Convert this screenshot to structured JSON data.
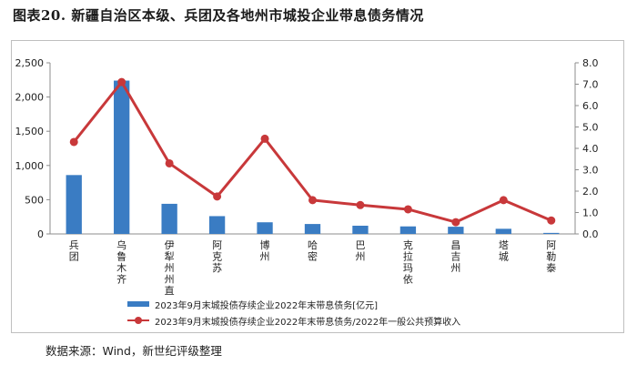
{
  "title": "图表20. 新疆自治区本级、兵团及各地州市城投企业带息债务情况",
  "source": "数据来源：Wind，新世纪评级整理",
  "chart_data": {
    "type": "bar",
    "categories": [
      "兵团",
      "乌鲁木齐",
      "伊犁州州直",
      "阿克苏",
      "博州",
      "哈密",
      "巴州",
      "克拉玛依",
      "昌吉州",
      "塔城",
      "阿勒泰"
    ],
    "series": [
      {
        "name": "2023年9月末城投债存续企业2022年末带息债务[亿元]",
        "kind": "bar",
        "axis": "left",
        "color": "#3a7cc3",
        "values": [
          860,
          2240,
          440,
          260,
          170,
          145,
          120,
          110,
          105,
          75,
          15
        ]
      },
      {
        "name": "2023年9月末城投债存续企业2022年末带息债务/2022年一般公共预算收入",
        "kind": "line",
        "axis": "right",
        "color": "#c8383a",
        "values": [
          4.3,
          7.1,
          3.3,
          1.75,
          4.45,
          1.58,
          1.35,
          1.15,
          0.55,
          1.58,
          0.63
        ]
      }
    ],
    "yleft": {
      "min": 0,
      "max": 2500,
      "step": 500,
      "tick_labels": [
        "0",
        "500",
        "1,000",
        "1,500",
        "2,000",
        "2,500"
      ]
    },
    "yright": {
      "min": 0,
      "max": 8,
      "step": 1,
      "tick_labels": [
        "0.0",
        "1.0",
        "2.0",
        "3.0",
        "4.0",
        "5.0",
        "6.0",
        "7.0",
        "8.0"
      ]
    },
    "legend_position": "bottom",
    "grid": false
  }
}
